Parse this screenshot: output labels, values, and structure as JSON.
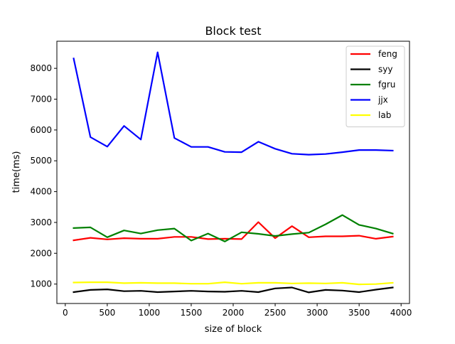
{
  "chart_data": {
    "type": "line",
    "title": "Block test",
    "xlabel": "size of block",
    "ylabel": "time(ms)",
    "xlim": [
      -100,
      4100
    ],
    "ylim": [
      370,
      8880
    ],
    "xticks": [
      0,
      500,
      1000,
      1500,
      2000,
      2500,
      3000,
      3500,
      4000
    ],
    "yticks": [
      1000,
      2000,
      3000,
      4000,
      5000,
      6000,
      7000,
      8000
    ],
    "grid": false,
    "legend_position": "top-right",
    "x": [
      100,
      300,
      500,
      700,
      900,
      1100,
      1300,
      1500,
      1700,
      1900,
      2100,
      2300,
      2500,
      2700,
      2900,
      3100,
      3300,
      3500,
      3700,
      3900
    ],
    "series": [
      {
        "name": "feng",
        "color": "#ff0000",
        "values": [
          2420,
          2500,
          2450,
          2490,
          2470,
          2470,
          2530,
          2530,
          2460,
          2470,
          2460,
          3010,
          2490,
          2880,
          2520,
          2550,
          2550,
          2570,
          2470,
          2540
        ]
      },
      {
        "name": "syy",
        "color": "#000000",
        "values": [
          740,
          810,
          830,
          770,
          780,
          740,
          760,
          780,
          760,
          750,
          780,
          740,
          860,
          890,
          730,
          810,
          790,
          740,
          820,
          890
        ]
      },
      {
        "name": "fgru",
        "color": "#008000",
        "values": [
          2820,
          2840,
          2520,
          2740,
          2640,
          2750,
          2800,
          2410,
          2640,
          2380,
          2680,
          2630,
          2560,
          2620,
          2670,
          2940,
          3240,
          2920,
          2800,
          2640
        ]
      },
      {
        "name": "jjx",
        "color": "#0000ff",
        "values": [
          8320,
          5770,
          5460,
          6130,
          5690,
          8520,
          5740,
          5450,
          5450,
          5290,
          5280,
          5620,
          5390,
          5230,
          5200,
          5220,
          5280,
          5350,
          5350,
          5330
        ]
      },
      {
        "name": "lab",
        "color": "#ffff00",
        "values": [
          1050,
          1060,
          1060,
          1030,
          1040,
          1030,
          1030,
          1010,
          1010,
          1060,
          1010,
          1040,
          1040,
          1020,
          1030,
          1020,
          1040,
          990,
          1000,
          1040
        ]
      }
    ]
  }
}
